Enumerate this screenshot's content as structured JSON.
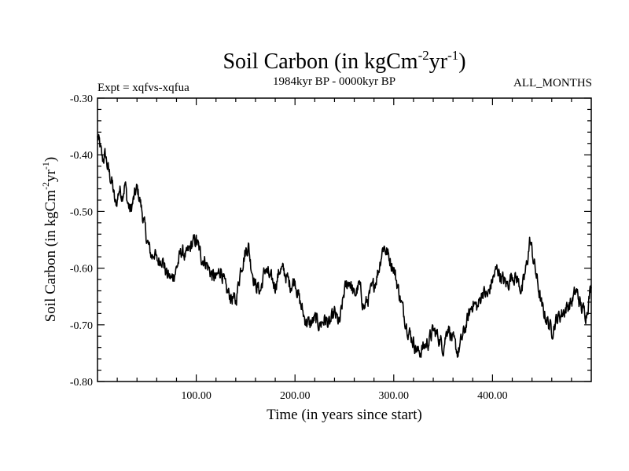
{
  "chart_data": {
    "type": "line",
    "title": "Soil Carbon (in kgCm",
    "title_sup1": "-2",
    "title_mid": "yr",
    "title_sup2": "-1",
    "title_end": ")",
    "subtitle_left": "Expt = xqfvs-xqfua",
    "subtitle_center": "1984kyr BP - 0000kyr BP",
    "subtitle_right": "ALL_MONTHS",
    "xlabel": "Time (in years since start)",
    "ylabel": "Soil Carbon (in kgCm",
    "ylabel_sup1": "-2",
    "ylabel_mid": "yr",
    "ylabel_sup2": "-1",
    "ylabel_end": ")",
    "xlim": [
      0,
      500
    ],
    "ylim": [
      -0.8,
      -0.3
    ],
    "x_ticks": [
      100,
      200,
      300,
      400
    ],
    "x_tick_labels": [
      "100.00",
      "200.00",
      "300.00",
      "400.00"
    ],
    "y_ticks": [
      -0.3,
      -0.4,
      -0.5,
      -0.6,
      -0.7,
      -0.8
    ],
    "y_tick_labels": [
      "-0.30",
      "-0.40",
      "-0.50",
      "-0.60",
      "-0.70",
      "-0.80"
    ],
    "series": [
      {
        "name": "soil-carbon",
        "color": "#000000",
        "anchors_x": [
          0,
          2,
          5,
          8,
          10,
          13,
          15,
          18,
          20,
          22,
          25,
          28,
          30,
          33,
          35,
          38,
          40,
          43,
          45,
          48,
          50,
          53,
          55,
          58,
          60,
          65,
          70,
          75,
          80,
          85,
          90,
          95,
          100,
          105,
          110,
          115,
          120,
          125,
          130,
          135,
          140,
          145,
          150,
          153,
          155,
          160,
          165,
          170,
          175,
          180,
          185,
          190,
          195,
          200,
          205,
          210,
          215,
          220,
          225,
          230,
          235,
          240,
          245,
          250,
          255,
          260,
          265,
          270,
          275,
          280,
          285,
          288,
          290,
          295,
          300,
          305,
          310,
          315,
          320,
          325,
          330,
          335,
          340,
          345,
          350,
          355,
          360,
          365,
          370,
          375,
          380,
          385,
          390,
          395,
          400,
          405,
          410,
          415,
          420,
          425,
          430,
          435,
          438,
          440,
          445,
          450,
          455,
          460,
          465,
          470,
          475,
          480,
          485,
          490,
          495,
          500
        ],
        "anchors_y": [
          -0.37,
          -0.38,
          -0.41,
          -0.4,
          -0.42,
          -0.44,
          -0.45,
          -0.49,
          -0.48,
          -0.46,
          -0.47,
          -0.45,
          -0.48,
          -0.5,
          -0.49,
          -0.47,
          -0.46,
          -0.48,
          -0.5,
          -0.53,
          -0.55,
          -0.57,
          -0.58,
          -0.57,
          -0.59,
          -0.58,
          -0.61,
          -0.62,
          -0.6,
          -0.57,
          -0.58,
          -0.56,
          -0.55,
          -0.58,
          -0.59,
          -0.61,
          -0.62,
          -0.6,
          -0.64,
          -0.65,
          -0.66,
          -0.6,
          -0.57,
          -0.56,
          -0.59,
          -0.63,
          -0.64,
          -0.6,
          -0.62,
          -0.63,
          -0.6,
          -0.61,
          -0.63,
          -0.62,
          -0.66,
          -0.69,
          -0.7,
          -0.69,
          -0.7,
          -0.69,
          -0.7,
          -0.68,
          -0.7,
          -0.64,
          -0.62,
          -0.65,
          -0.63,
          -0.67,
          -0.65,
          -0.63,
          -0.6,
          -0.57,
          -0.56,
          -0.58,
          -0.6,
          -0.64,
          -0.68,
          -0.71,
          -0.73,
          -0.75,
          -0.74,
          -0.73,
          -0.71,
          -0.72,
          -0.74,
          -0.7,
          -0.73,
          -0.75,
          -0.72,
          -0.69,
          -0.66,
          -0.67,
          -0.64,
          -0.65,
          -0.62,
          -0.6,
          -0.62,
          -0.63,
          -0.61,
          -0.62,
          -0.64,
          -0.59,
          -0.55,
          -0.57,
          -0.62,
          -0.67,
          -0.69,
          -0.71,
          -0.69,
          -0.68,
          -0.67,
          -0.66,
          -0.64,
          -0.67,
          -0.68,
          -0.63
        ]
      }
    ]
  }
}
